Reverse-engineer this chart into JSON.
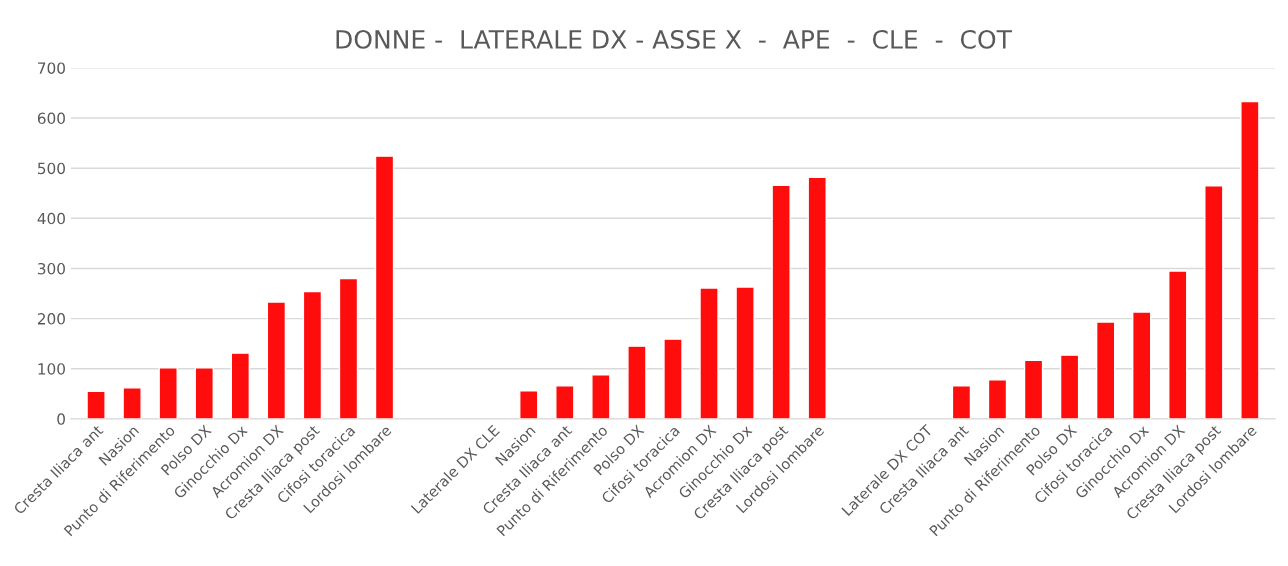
{
  "chart_data": {
    "type": "bar",
    "title": "DONNE -  LATERALE DX - ASSE X  -  APE  -  CLE  -  COT",
    "categories": [
      "Cresta Iliaca ant",
      "Nasion",
      "Punto di Riferimento",
      "Polso DX",
      "Ginocchio Dx",
      "Acromion DX",
      "Cresta Iliaca post",
      "Cifosi toracica",
      "Lordosi lombare",
      null,
      null,
      "Laterale DX CLE",
      "Nasion",
      "Cresta Iliaca ant",
      "Punto di Riferimento",
      "Polso DX",
      "Cifosi toracica",
      "Acromion DX",
      "Ginocchio Dx",
      "Cresta Iliaca post",
      "Lordosi lombare",
      null,
      null,
      "Laterale DX COT",
      "Cresta Iliaca ant",
      "Nasion",
      "Punto di Riferimento",
      "Polso DX",
      "Cifosi toracica",
      "Ginocchio Dx",
      "Acromion DX",
      "Cresta Iliaca post",
      "Lordosi lombare"
    ],
    "values": [
      55,
      62,
      102,
      102,
      131,
      233,
      254,
      280,
      524,
      null,
      null,
      null,
      56,
      66,
      88,
      145,
      159,
      261,
      263,
      466,
      482,
      null,
      null,
      null,
      66,
      78,
      117,
      127,
      193,
      213,
      295,
      465,
      633
    ],
    "color": "#ff0d0d",
    "ylim": [
      0,
      700
    ],
    "yticks": [
      0,
      100,
      200,
      300,
      400,
      500,
      600,
      700
    ],
    "grid": "y"
  }
}
